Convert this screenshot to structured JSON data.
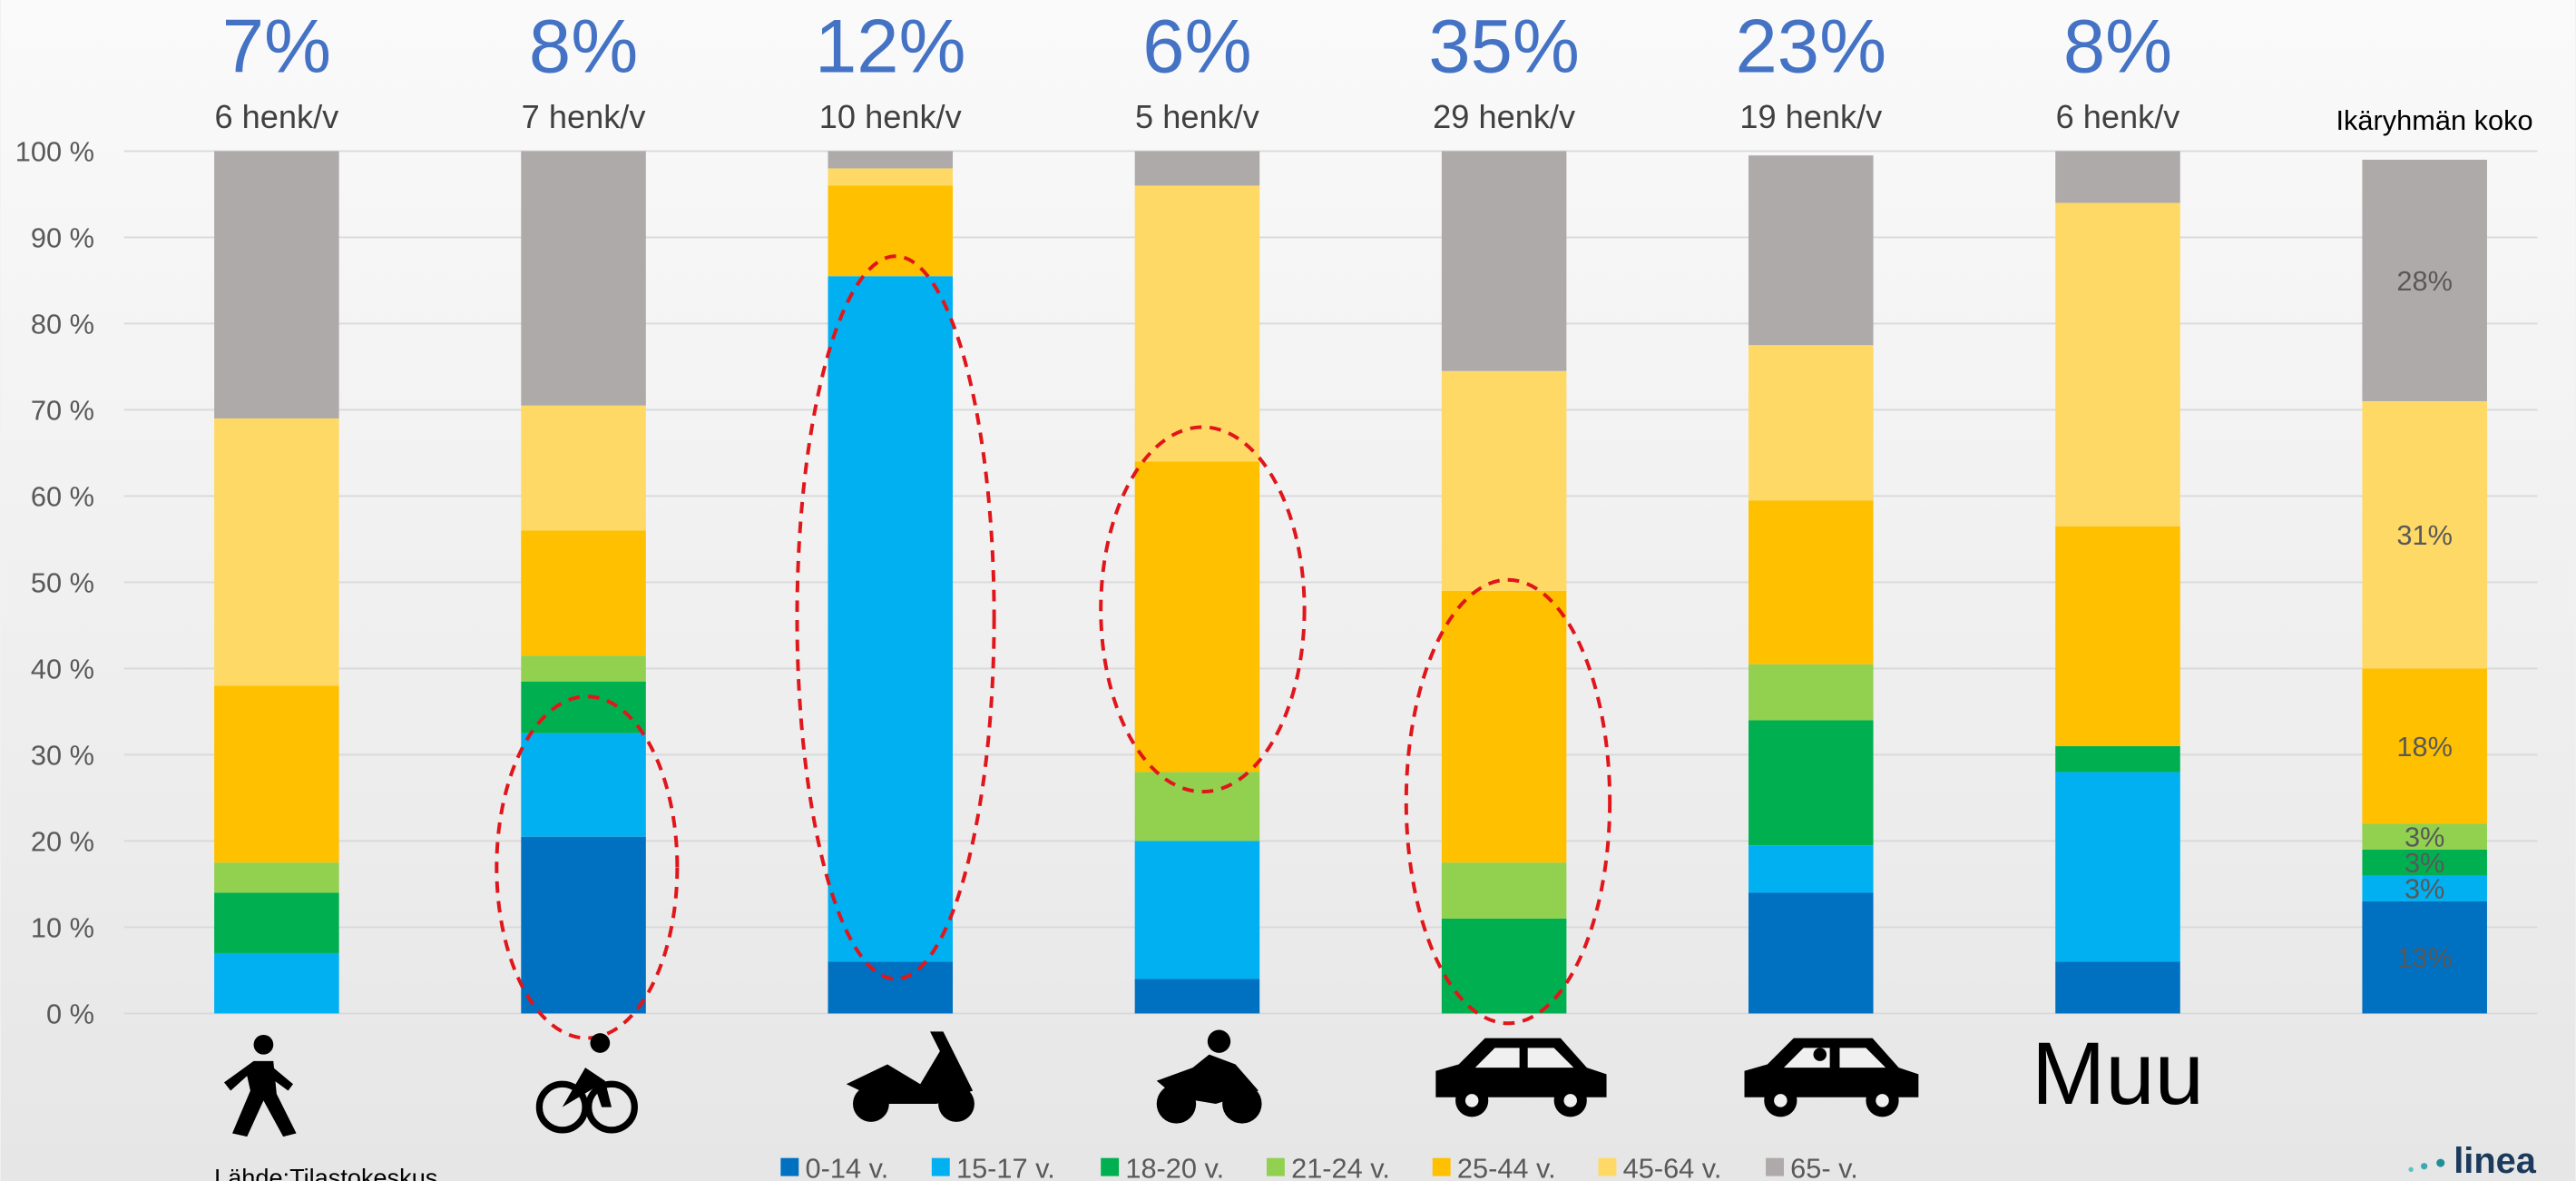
{
  "chart_data": {
    "type": "stacked_bar",
    "top_labels": [
      "7%",
      "8%",
      "12%",
      "6%",
      "35%",
      "23%",
      "8%"
    ],
    "rates": [
      "6 henk/v",
      "7 henk/v",
      "10 henk/v",
      "5 henk/v",
      "29 henk/v",
      "19 henk/v",
      "6 henk/v"
    ],
    "categories": [
      null,
      null,
      null,
      null,
      null,
      null,
      "Muu",
      "Ikäryhmän koko"
    ],
    "series": [
      {
        "name": "0-14 v.",
        "color": "#0070c0",
        "values": [
          0,
          20.5,
          6,
          4,
          0,
          14,
          6,
          13
        ],
        "value_labels": [
          null,
          null,
          null,
          null,
          null,
          null,
          null,
          "13%"
        ]
      },
      {
        "name": "15-17 v.",
        "color": "#00b0f0",
        "values": [
          7,
          12,
          79.5,
          16,
          0,
          5.5,
          22,
          3
        ],
        "value_labels": [
          null,
          null,
          null,
          null,
          null,
          null,
          null,
          "3%"
        ]
      },
      {
        "name": "18-20 v.",
        "color": "#00b050",
        "values": [
          7,
          6,
          0,
          0,
          11,
          14.5,
          3,
          3
        ],
        "value_labels": [
          null,
          null,
          null,
          null,
          null,
          null,
          null,
          "3%"
        ]
      },
      {
        "name": "21-24 v.",
        "color": "#92d050",
        "values": [
          3.5,
          3,
          0,
          8,
          6.5,
          6.5,
          0,
          3
        ],
        "value_labels": [
          null,
          null,
          null,
          null,
          null,
          null,
          null,
          "3%"
        ]
      },
      {
        "name": "25-44 v.",
        "color": "#ffc000",
        "values": [
          20.5,
          14.5,
          10.5,
          36,
          31.5,
          19,
          25.5,
          18
        ],
        "value_labels": [
          null,
          null,
          null,
          null,
          null,
          null,
          null,
          "18%"
        ]
      },
      {
        "name": "45-64 v.",
        "color": "#ffd966",
        "values": [
          31,
          14.5,
          2,
          32,
          25.5,
          18,
          37.5,
          31
        ],
        "value_labels": [
          null,
          null,
          null,
          null,
          null,
          null,
          null,
          "31%"
        ]
      },
      {
        "name": "65- v.",
        "color": "#aeaaaa",
        "values": [
          31,
          29.5,
          2,
          4,
          25.5,
          22,
          6,
          28
        ],
        "value_labels": [
          null,
          null,
          null,
          null,
          null,
          null,
          null,
          "28%"
        ]
      }
    ],
    "ylim": [
      0,
      100
    ],
    "yticks": [
      {
        "value": 0,
        "label": "0 %"
      },
      {
        "value": 10,
        "label": "10 %"
      },
      {
        "value": 20,
        "label": "20 %"
      },
      {
        "value": 30,
        "label": "30 %"
      },
      {
        "value": 40,
        "label": "40 %"
      },
      {
        "value": 50,
        "label": "50 %"
      },
      {
        "value": 60,
        "label": "60 %"
      },
      {
        "value": 70,
        "label": "70 %"
      },
      {
        "value": 80,
        "label": "80 %"
      },
      {
        "value": 90,
        "label": "90 %"
      },
      {
        "value": 100,
        "label": "100 %"
      }
    ],
    "grid": true,
    "source": "Lähde:Tilastokeskus",
    "logo": "linea"
  }
}
